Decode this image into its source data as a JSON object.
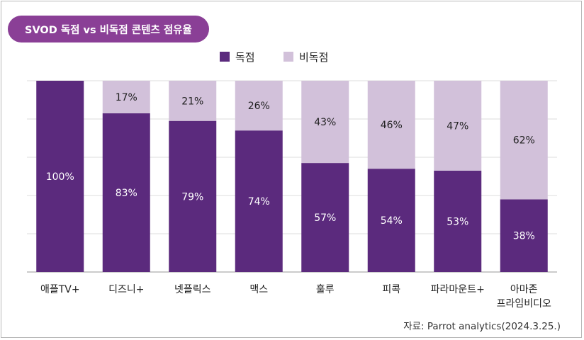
{
  "chart_data": {
    "type": "bar",
    "stacked": true,
    "title": "SVOD 독점 vs 비독점 콘텐츠 점유율",
    "categories": [
      [
        "애플TV+"
      ],
      [
        "디즈니+"
      ],
      [
        "넷플릭스"
      ],
      [
        "맥스"
      ],
      [
        "훌루"
      ],
      [
        "피콕"
      ],
      [
        "파라마운트+"
      ],
      [
        "아마존",
        "프라임비디오"
      ]
    ],
    "series": [
      {
        "name": "독점",
        "color": "#5b2a7d",
        "values": [
          100,
          83,
          79,
          74,
          57,
          54,
          53,
          38
        ]
      },
      {
        "name": "비독점",
        "color": "#d2c1da",
        "values": [
          0,
          17,
          21,
          26,
          43,
          46,
          47,
          62
        ]
      }
    ],
    "ylim": [
      0,
      100
    ],
    "grid": true,
    "legend_position": "top-center"
  },
  "source": "자료: Parrot analytics(2024.3.25.)"
}
